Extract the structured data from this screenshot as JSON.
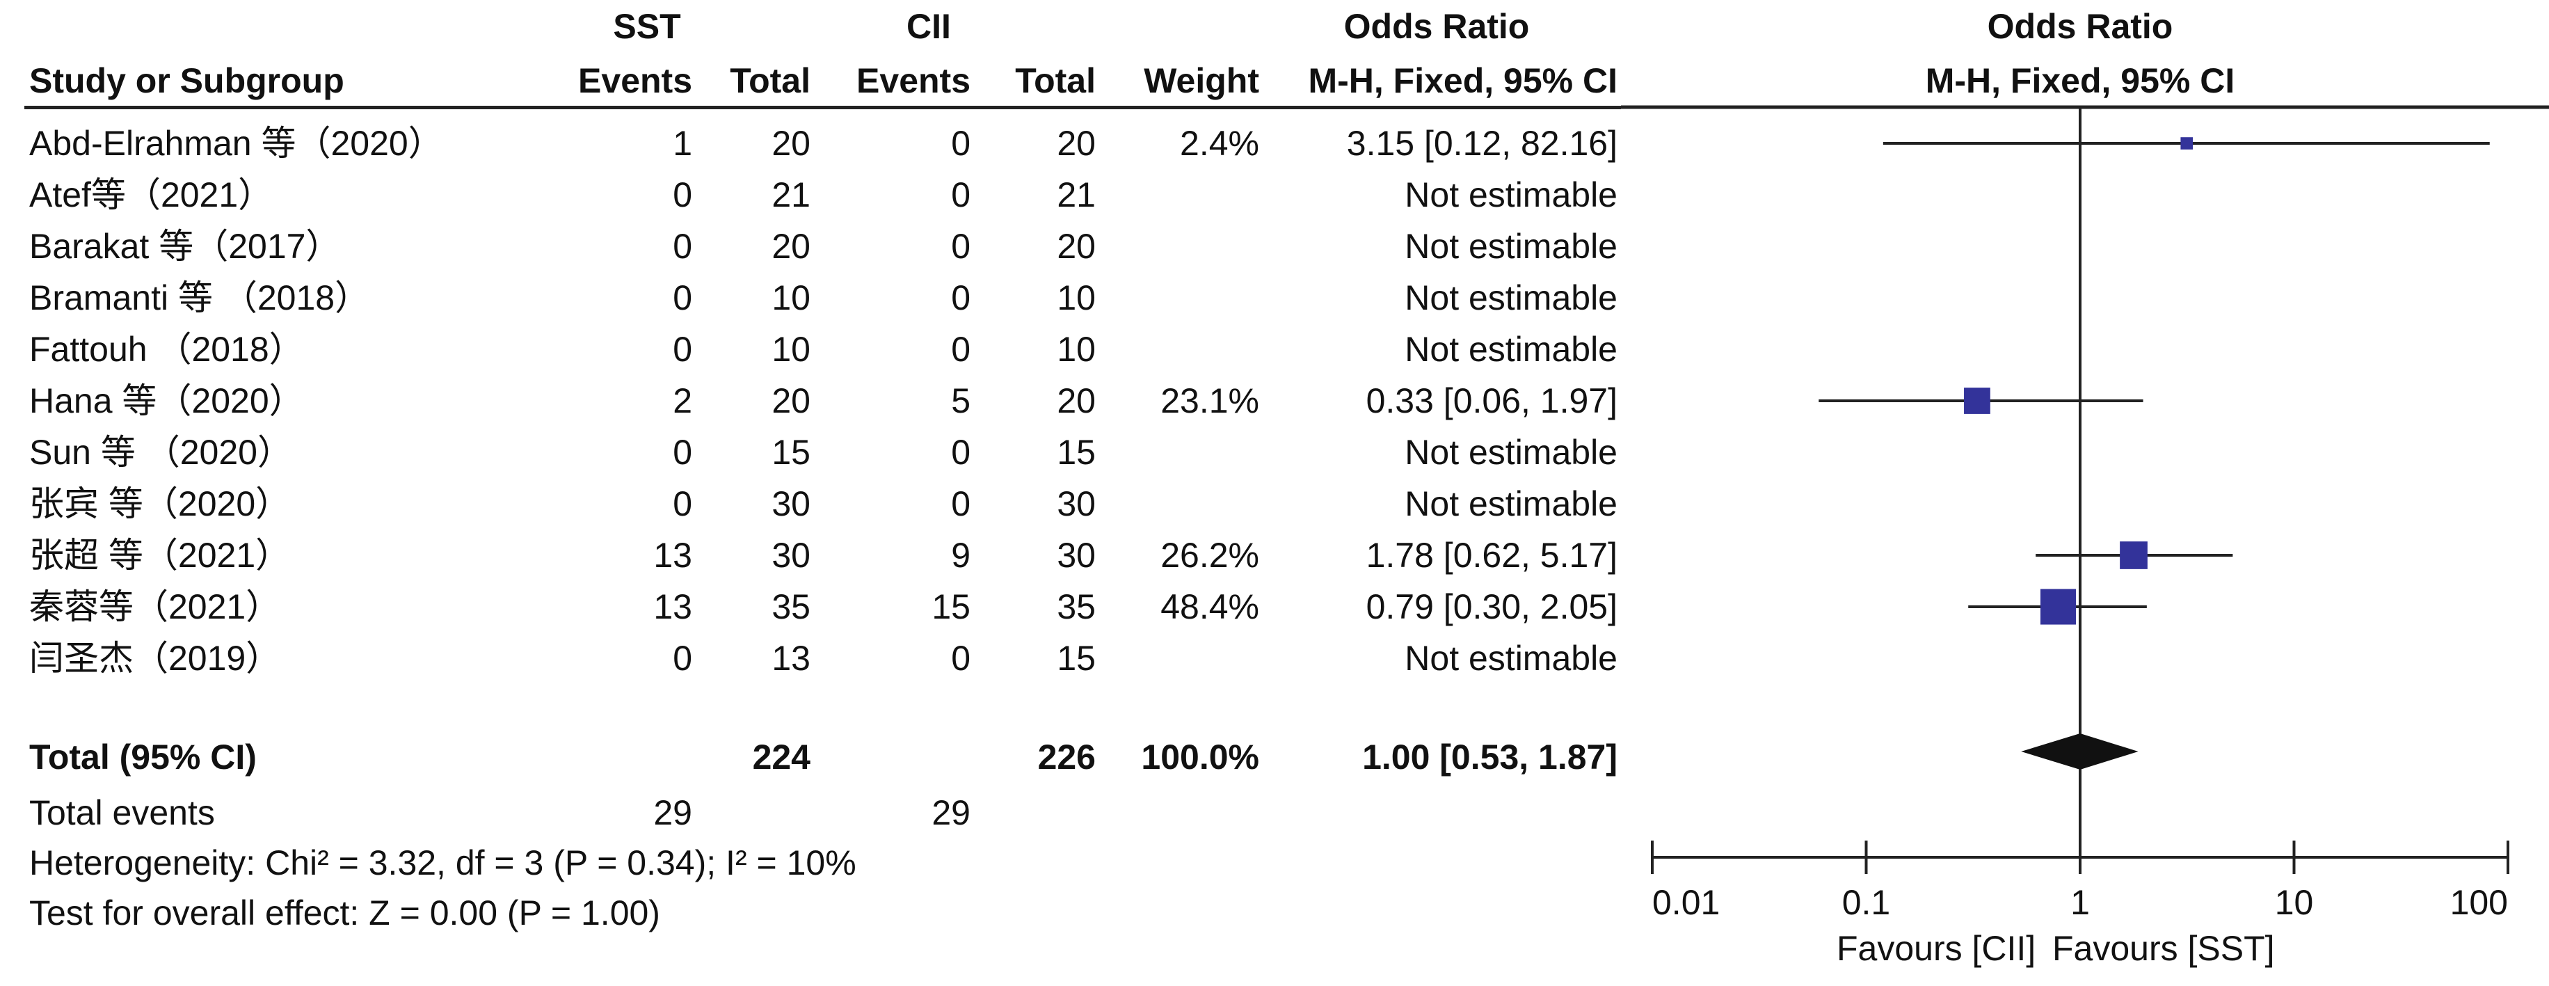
{
  "headers": {
    "group1": "SST",
    "group2": "CII",
    "odds_ratio": "Odds Ratio",
    "plot_title": "Odds Ratio",
    "study": "Study or Subgroup",
    "events": "Events",
    "total": "Total",
    "weight": "Weight",
    "method": "M-H, Fixed, 95% CI",
    "plot_method": "M-H, Fixed, 95% CI"
  },
  "studies": [
    {
      "name": "Abd-Elrahman 等（2020）",
      "e1": "1",
      "n1": "20",
      "e2": "0",
      "n2": "20",
      "weight": "2.4%",
      "ci": "3.15 [0.12, 82.16]"
    },
    {
      "name": "Atef等（2021）",
      "e1": "0",
      "n1": "21",
      "e2": "0",
      "n2": "21",
      "weight": "",
      "ci": "Not estimable"
    },
    {
      "name": "Barakat 等（2017）",
      "e1": "0",
      "n1": "20",
      "e2": "0",
      "n2": "20",
      "weight": "",
      "ci": "Not estimable"
    },
    {
      "name": "Bramanti 等 （2018）",
      "e1": "0",
      "n1": "10",
      "e2": "0",
      "n2": "10",
      "weight": "",
      "ci": "Not estimable"
    },
    {
      "name": "Fattouh （2018）",
      "e1": "0",
      "n1": "10",
      "e2": "0",
      "n2": "10",
      "weight": "",
      "ci": "Not estimable"
    },
    {
      "name": "Hana 等（2020）",
      "e1": "2",
      "n1": "20",
      "e2": "5",
      "n2": "20",
      "weight": "23.1%",
      "ci": "0.33 [0.06, 1.97]"
    },
    {
      "name": "Sun 等 （2020）",
      "e1": "0",
      "n1": "15",
      "e2": "0",
      "n2": "15",
      "weight": "",
      "ci": "Not estimable"
    },
    {
      "name": "张宾 等（2020）",
      "e1": "0",
      "n1": "30",
      "e2": "0",
      "n2": "30",
      "weight": "",
      "ci": "Not estimable"
    },
    {
      "name": "张超 等（2021）",
      "e1": "13",
      "n1": "30",
      "e2": "9",
      "n2": "30",
      "weight": "26.2%",
      "ci": "1.78 [0.62, 5.17]"
    },
    {
      "name": "秦蓉等（2021）",
      "e1": "13",
      "n1": "35",
      "e2": "15",
      "n2": "35",
      "weight": "48.4%",
      "ci": "0.79 [0.30, 2.05]"
    },
    {
      "name": "闫圣杰（2019）",
      "e1": "0",
      "n1": "13",
      "e2": "0",
      "n2": "15",
      "weight": "",
      "ci": "Not estimable"
    }
  ],
  "total_row": {
    "label": "Total (95% CI)",
    "n1": "224",
    "n2": "226",
    "weight": "100.0%",
    "ci": "1.00 [0.53, 1.87]"
  },
  "events_row": {
    "label": "Total events",
    "e1": "29",
    "e2": "29"
  },
  "heterogeneity": "Heterogeneity: Chi² = 3.32, df = 3 (P = 0.34); I² = 10%",
  "overall_effect": "Test for overall effect: Z = 0.00 (P = 1.00)",
  "favours_left": "Favours [CII]",
  "favours_right": "Favours [SST]",
  "colors": {
    "marker": "#33339a",
    "diamond": "#111111",
    "line": "#222222"
  },
  "chart_data": {
    "type": "forest",
    "xscale": "log",
    "xlim": [
      0.01,
      100
    ],
    "xticks": [
      0.01,
      0.1,
      1,
      10,
      100
    ],
    "xtick_labels": [
      "0.01",
      "0.1",
      "1",
      "10",
      "100"
    ],
    "reference_line": 1,
    "points": [
      {
        "row": 0,
        "or": 3.15,
        "lo": 0.12,
        "hi": 82.16,
        "weight": 2.4
      },
      {
        "row": 5,
        "or": 0.33,
        "lo": 0.06,
        "hi": 1.97,
        "weight": 23.1
      },
      {
        "row": 8,
        "or": 1.78,
        "lo": 0.62,
        "hi": 5.17,
        "weight": 26.2
      },
      {
        "row": 9,
        "or": 0.79,
        "lo": 0.3,
        "hi": 2.05,
        "weight": 48.4
      }
    ],
    "pooled": {
      "or": 1.0,
      "lo": 0.53,
      "hi": 1.87
    }
  }
}
